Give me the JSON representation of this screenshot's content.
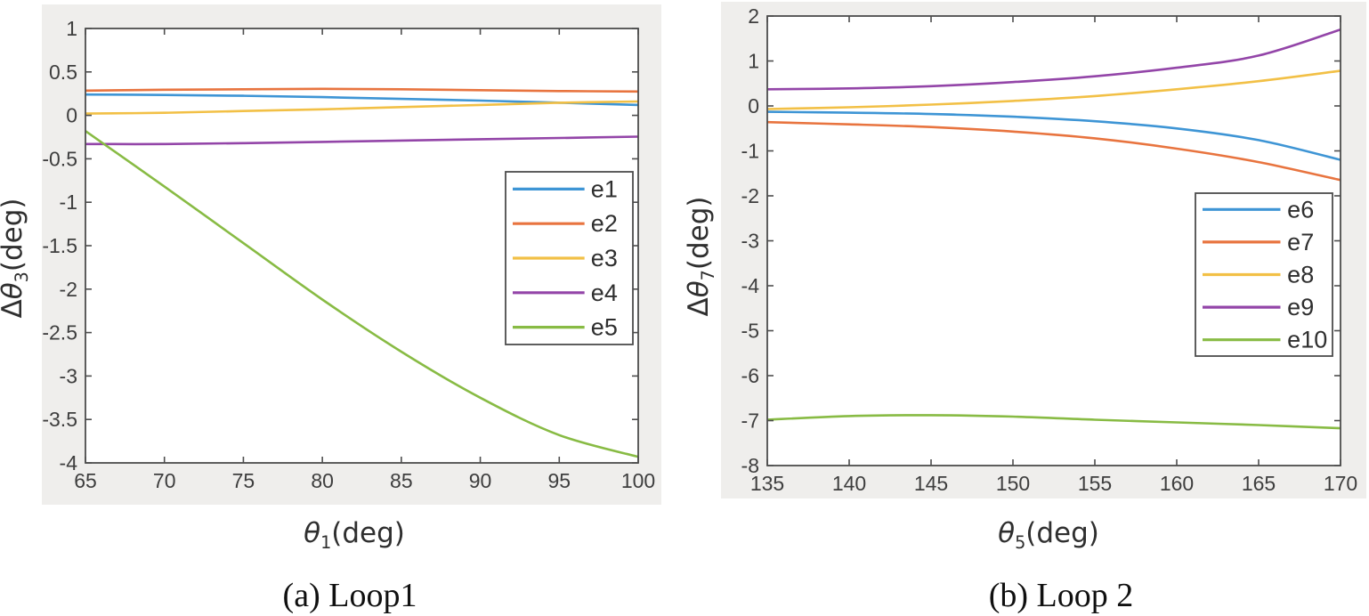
{
  "palette": {
    "blue": "#3e95d5",
    "orange": "#e8743f",
    "yellow": "#f2c046",
    "purple": "#9345a8",
    "green": "#88bb44",
    "axis": "#4d4d4d",
    "tick_text": "#3e3e3e",
    "panel_bg": "#efeeec",
    "plot_bg": "#ffffff"
  },
  "chart_data": [
    {
      "type": "line",
      "id": "loop1",
      "caption": "(a) Loop1",
      "xlabel": {
        "prefix": "",
        "symbol": "θ",
        "sub": "1",
        "unit": "(deg)"
      },
      "ylabel": {
        "prefix": "Δ",
        "symbol": "θ",
        "sub": "3",
        "unit": "(deg)"
      },
      "xlim": [
        65,
        100
      ],
      "ylim": [
        -4,
        1
      ],
      "xticks": [
        "65",
        "70",
        "75",
        "80",
        "85",
        "90",
        "95",
        "100"
      ],
      "yticks": [
        "-4",
        "-3.5",
        "-3",
        "-2.5",
        "-2",
        "-1.5",
        "-1",
        "-0.5",
        "0",
        "0.5",
        "1"
      ],
      "grid": "off",
      "legend": {
        "position": "inside-right",
        "labels": [
          "e1",
          "e2",
          "e3",
          "e4",
          "e5"
        ]
      },
      "x": [
        65,
        70,
        75,
        80,
        85,
        90,
        95,
        100
      ],
      "series": [
        {
          "name": "e1",
          "color": "blue",
          "values": [
            0.24,
            0.235,
            0.225,
            0.21,
            0.19,
            0.17,
            0.145,
            0.12
          ]
        },
        {
          "name": "e2",
          "color": "orange",
          "values": [
            0.285,
            0.295,
            0.3,
            0.305,
            0.3,
            0.29,
            0.28,
            0.275
          ]
        },
        {
          "name": "e3",
          "color": "yellow",
          "values": [
            0.02,
            0.03,
            0.05,
            0.07,
            0.095,
            0.12,
            0.145,
            0.16
          ]
        },
        {
          "name": "e4",
          "color": "purple",
          "values": [
            -0.33,
            -0.33,
            -0.32,
            -0.305,
            -0.29,
            -0.275,
            -0.26,
            -0.245
          ]
        },
        {
          "name": "e5",
          "color": "green",
          "values": [
            -0.18,
            -0.82,
            -1.47,
            -2.12,
            -2.72,
            -3.25,
            -3.68,
            -3.93
          ]
        }
      ]
    },
    {
      "type": "line",
      "id": "loop2",
      "caption": "(b) Loop 2",
      "xlabel": {
        "prefix": "",
        "symbol": "θ",
        "sub": "5",
        "unit": "(deg)"
      },
      "ylabel": {
        "prefix": "Δ",
        "symbol": "θ",
        "sub": "7",
        "unit": "(deg)"
      },
      "xlim": [
        135,
        170
      ],
      "ylim": [
        -8,
        2
      ],
      "xticks": [
        "135",
        "140",
        "145",
        "150",
        "155",
        "160",
        "165",
        "170"
      ],
      "yticks": [
        "-8",
        "-7",
        "-6",
        "-5",
        "-4",
        "-3",
        "-2",
        "-1",
        "0",
        "1",
        "2"
      ],
      "grid": "off",
      "legend": {
        "position": "inside-right",
        "labels": [
          "e6",
          "e7",
          "e8",
          "e9",
          "e10"
        ]
      },
      "x": [
        135,
        140,
        145,
        150,
        155,
        160,
        165,
        170
      ],
      "series": [
        {
          "name": "e6",
          "color": "blue",
          "values": [
            -0.13,
            -0.15,
            -0.18,
            -0.24,
            -0.34,
            -0.5,
            -0.76,
            -1.2
          ]
        },
        {
          "name": "e7",
          "color": "orange",
          "values": [
            -0.36,
            -0.41,
            -0.47,
            -0.57,
            -0.72,
            -0.95,
            -1.25,
            -1.65
          ]
        },
        {
          "name": "e8",
          "color": "yellow",
          "values": [
            -0.07,
            -0.03,
            0.03,
            0.11,
            0.22,
            0.37,
            0.55,
            0.78
          ]
        },
        {
          "name": "e9",
          "color": "purple",
          "values": [
            0.37,
            0.39,
            0.44,
            0.53,
            0.66,
            0.85,
            1.12,
            1.7
          ]
        },
        {
          "name": "e10",
          "color": "green",
          "values": [
            -6.98,
            -6.9,
            -6.88,
            -6.91,
            -6.98,
            -7.04,
            -7.1,
            -7.17
          ]
        }
      ]
    }
  ]
}
